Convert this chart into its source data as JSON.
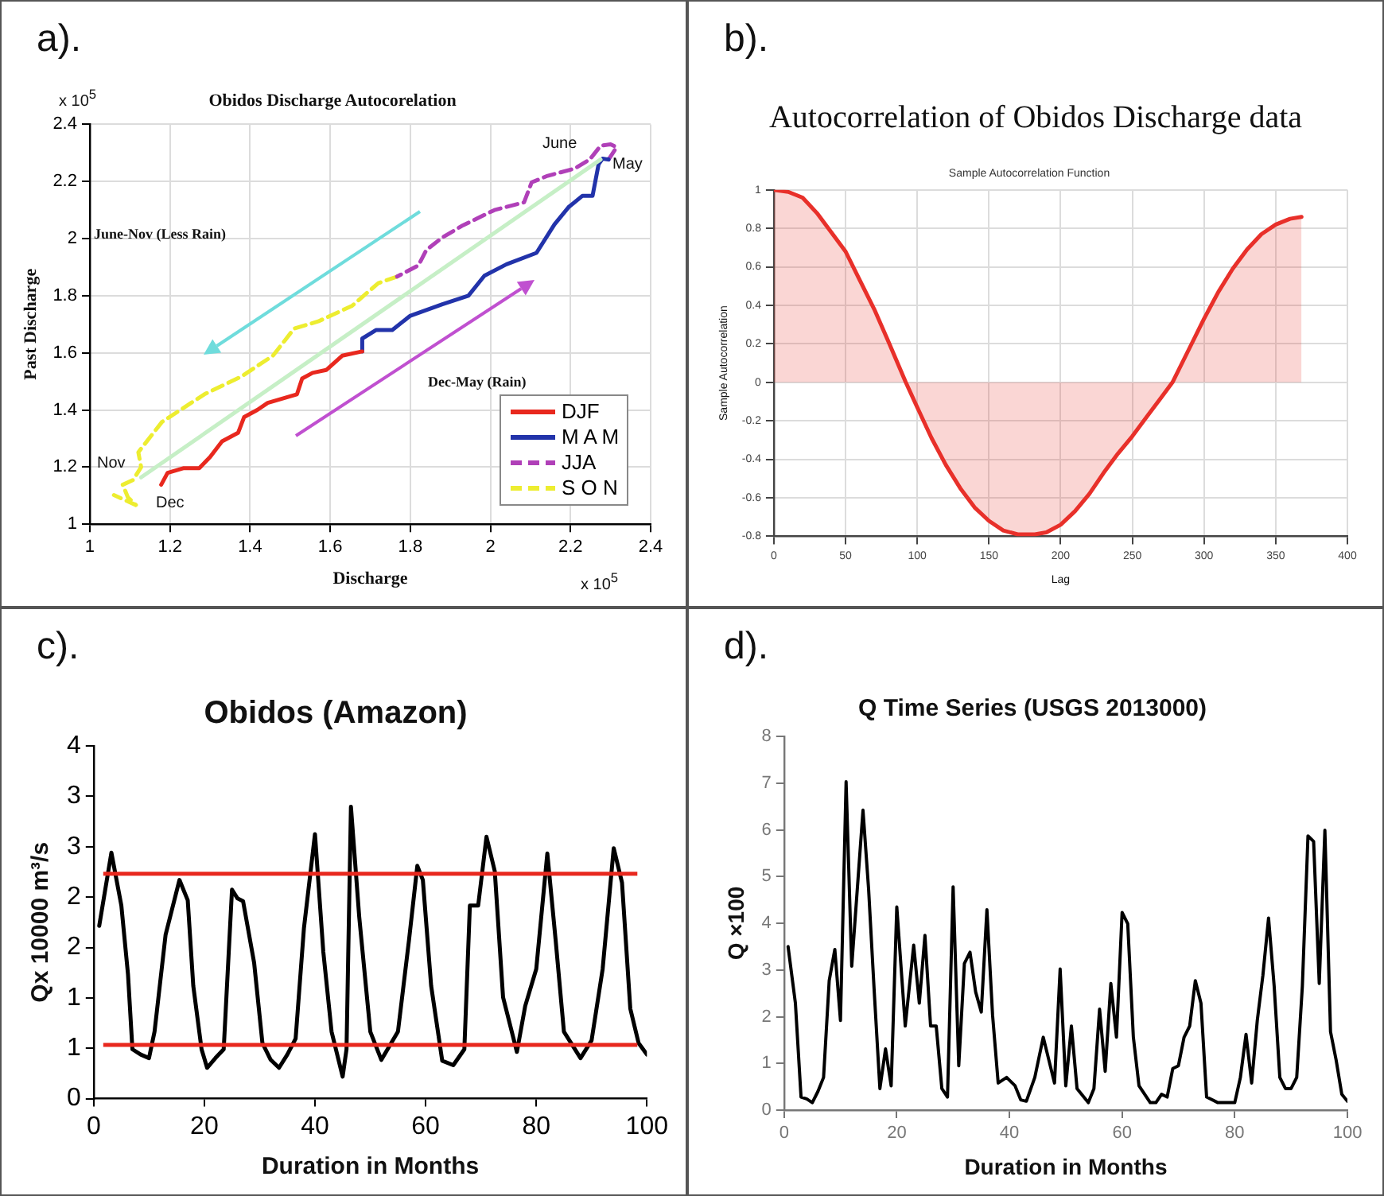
{
  "chart_data": [
    {
      "type": "line",
      "title": "Obidos Discharge Autocorelation",
      "xlabel": "Discharge",
      "ylabel": "Past Discharge",
      "xlim": [
        1,
        2.4
      ],
      "xticks": [
        1,
        1.2,
        1.4,
        1.6,
        1.8,
        2,
        2.2,
        2.4
      ],
      "ylim": [
        1,
        2.4
      ],
      "yticks": [
        1,
        1.2,
        1.4,
        1.6,
        1.8,
        2,
        2.2,
        2.4
      ],
      "grid": true,
      "legend": "bottom right",
      "marker": "none",
      "annotations": [
        "a).",
        "x 10$^{5}$",
        "x 10$^{5}$",
        "June-Nov (Less Rain)",
        "Dec-May (Rain)",
        "June",
        "May",
        "Nov",
        "Dec"
      ],
      "series": [
        {
          "x": [
            1.128,
            2.275
          ],
          "values": [
            1.164,
            2.277
          ],
          "color": "#c6efc6"
        },
        {
          "name": "DJF",
          "color": "#e8281e",
          "line_style": "solid",
          "x": [
            1.178,
            1.194,
            1.233,
            1.273,
            1.3,
            1.33,
            1.37,
            1.385,
            1.418,
            1.444,
            1.517,
            1.53,
            1.556,
            1.59,
            1.63,
            1.68
          ],
          "values": [
            1.138,
            1.18,
            1.196,
            1.196,
            1.235,
            1.29,
            1.32,
            1.375,
            1.4,
            1.425,
            1.455,
            1.51,
            1.53,
            1.54,
            1.59,
            1.605
          ]
        },
        {
          "name": "M A M",
          "color": "#2233aa",
          "line_style": "solid",
          "x": [
            1.68,
            1.68,
            1.715,
            1.755,
            1.8,
            1.88,
            1.945,
            1.985,
            2.04,
            2.115,
            2.16,
            2.195,
            2.23,
            2.255,
            2.27,
            2.28,
            2.295
          ],
          "values": [
            1.605,
            1.65,
            1.68,
            1.68,
            1.73,
            1.77,
            1.8,
            1.87,
            1.91,
            1.95,
            2.05,
            2.11,
            2.15,
            2.15,
            2.26,
            2.28,
            2.277
          ]
        },
        {
          "name": "JJA",
          "color": "#b040b8",
          "line_style": "dashed",
          "x": [
            2.295,
            2.315,
            2.3,
            2.275,
            2.248,
            2.21,
            2.143,
            2.103,
            2.084,
            2.01,
            1.932,
            1.879,
            1.84,
            1.82,
            1.767
          ],
          "values": [
            2.277,
            2.32,
            2.33,
            2.325,
            2.277,
            2.245,
            2.22,
            2.197,
            2.127,
            2.1,
            2.047,
            2.003,
            1.96,
            1.906,
            1.867
          ]
        },
        {
          "name": "S O N",
          "color": "#eded30",
          "line_style": "dashed",
          "x": [
            1.767,
            1.72,
            1.655,
            1.57,
            1.51,
            1.457,
            1.378,
            1.286,
            1.18,
            1.121,
            1.128,
            1.108,
            1.082,
            1.095,
            1.115,
            1.06
          ],
          "values": [
            1.867,
            1.844,
            1.765,
            1.71,
            1.685,
            1.59,
            1.517,
            1.455,
            1.358,
            1.252,
            1.2,
            1.155,
            1.138,
            1.094,
            1.067,
            1.102
          ]
        }
      ]
    },
    {
      "type": "area",
      "title": "Autocorrelation of Obidos Discharge data",
      "subtitle": "Sample Autocorrelation Function",
      "xlabel": "Lag",
      "ylabel": "Sample Autocorrelation",
      "xlim": [
        0,
        400
      ],
      "xticks": [
        0,
        50,
        100,
        150,
        200,
        250,
        300,
        350,
        400
      ],
      "ylim": [
        -0.8,
        1
      ],
      "yticks": [
        -0.8,
        -0.6,
        -0.4,
        -0.2,
        0,
        0.2,
        0.4,
        0.6,
        0.8,
        1
      ],
      "grid": true,
      "marker": "none",
      "annotations": [
        "b)."
      ],
      "series": [
        {
          "color": "#e8302a",
          "x": [
            0,
            10,
            20,
            30,
            40,
            50,
            60,
            70,
            80,
            92,
            100,
            110,
            120,
            130,
            140,
            150,
            160,
            170,
            182,
            190,
            200,
            210,
            220,
            230,
            240,
            250,
            260,
            270,
            278,
            290,
            300,
            310,
            320,
            330,
            340,
            350,
            360,
            368
          ],
          "values": [
            1,
            0.99,
            0.96,
            0.88,
            0.78,
            0.68,
            0.53,
            0.38,
            0.21,
            0,
            -0.13,
            -0.29,
            -0.43,
            -0.55,
            -0.65,
            -0.72,
            -0.77,
            -0.79,
            -0.79,
            -0.78,
            -0.74,
            -0.67,
            -0.58,
            -0.47,
            -0.37,
            -0.28,
            -0.18,
            -0.08,
            0,
            0.18,
            0.33,
            0.47,
            0.59,
            0.69,
            0.77,
            0.82,
            0.85,
            0.86
          ]
        }
      ]
    },
    {
      "type": "line",
      "title": "Obidos (Amazon)",
      "xlabel": "Duration in Months",
      "ylabel": "Qx 10000 m³/s",
      "xlim": [
        0,
        100
      ],
      "xticks": [
        0,
        20,
        40,
        60,
        80,
        100
      ],
      "ylim": [
        0,
        4
      ],
      "yticks": [
        0,
        {
          "value": 0.571,
          "label": "1"
        },
        {
          "value": 1.143,
          "label": "1"
        },
        {
          "value": 1.714,
          "label": "2"
        },
        {
          "value": 2.286,
          "label": "2"
        },
        {
          "value": 2.857,
          "label": "3"
        },
        {
          "value": 3.429,
          "label": "3"
        },
        4
      ],
      "grid": false,
      "marker": "none",
      "annotations": [
        "c)."
      ],
      "ref_lines": [
        {
          "axis": "y",
          "value": 2.55,
          "color": "#e8281e"
        },
        {
          "axis": "y",
          "value": 0.61,
          "color": "#e8281e"
        }
      ],
      "series": [
        {
          "color": "#000000",
          "x": [
            1,
            3.2,
            5,
            6.2,
            7,
            8.5,
            10,
            11,
            13,
            15.5,
            17,
            18,
            19.5,
            20.5,
            22,
            23.5,
            25,
            26,
            27,
            29,
            30.5,
            32,
            33.5,
            35,
            36.5,
            38,
            40,
            41.5,
            43,
            45,
            45.7,
            46.5,
            48,
            50,
            52,
            55,
            57,
            58.5,
            59.5,
            61,
            63,
            65,
            67,
            68,
            69.5,
            71,
            72.5,
            74,
            76.5,
            78,
            80,
            82,
            83.5,
            85,
            88,
            90,
            92,
            94,
            95.5,
            97,
            98.5,
            100
          ],
          "values": [
            1.96,
            2.79,
            2.19,
            1.41,
            0.56,
            0.5,
            0.46,
            0.76,
            1.86,
            2.48,
            2.25,
            1.28,
            0.56,
            0.35,
            0.46,
            0.56,
            2.37,
            2.27,
            2.24,
            1.54,
            0.63,
            0.44,
            0.35,
            0.5,
            0.68,
            1.93,
            3,
            1.67,
            0.76,
            0.25,
            0.56,
            3.31,
            2.06,
            0.76,
            0.44,
            0.76,
            1.8,
            2.64,
            2.48,
            1.28,
            0.43,
            0.38,
            0.56,
            2.19,
            2.19,
            2.97,
            2.58,
            1.15,
            0.53,
            1.05,
            1.47,
            2.78,
            1.8,
            0.76,
            0.46,
            0.66,
            1.47,
            2.84,
            2.45,
            1.02,
            0.63,
            0.5
          ]
        }
      ]
    },
    {
      "type": "line",
      "title": "Q Time Series (USGS 2013000)",
      "xlabel": "Duration in Months",
      "ylabel": "Q ×100",
      "xlim": [
        0,
        100
      ],
      "xticks": [
        0,
        20,
        40,
        60,
        80,
        100
      ],
      "ylim": [
        0,
        8
      ],
      "yticks": [
        0,
        1,
        2,
        3,
        4,
        5,
        6,
        7,
        8
      ],
      "grid": false,
      "marker": "none",
      "annotations": [
        "d)."
      ],
      "series": [
        {
          "color": "#000000",
          "x": [
            0.7,
            2,
            3,
            4,
            5,
            6,
            7,
            8,
            9,
            10,
            11,
            12,
            14,
            15,
            16,
            17,
            18,
            19,
            20,
            21.5,
            23,
            24,
            25,
            26,
            27,
            28,
            29,
            30,
            31,
            32,
            33,
            34,
            35,
            36,
            37,
            38,
            39.5,
            41,
            42,
            43,
            44.5,
            46,
            47,
            48,
            49,
            50,
            51,
            52,
            54,
            55,
            56,
            57,
            58,
            59,
            60,
            61,
            62,
            63,
            65,
            66,
            67,
            68,
            69,
            70,
            71,
            72,
            73,
            74,
            75,
            77,
            79,
            80,
            81,
            82,
            83,
            84,
            85,
            86,
            87,
            88,
            89,
            90,
            91,
            92,
            93,
            94,
            95,
            96,
            97,
            98,
            99,
            100
          ],
          "values": [
            3.5,
            2.29,
            0.28,
            0.24,
            0.16,
            0.4,
            0.7,
            2.77,
            3.44,
            1.92,
            7.03,
            3.08,
            6.42,
            4.72,
            2.53,
            0.46,
            1.31,
            0.52,
            4.35,
            1.8,
            3.53,
            2.29,
            3.74,
            1.8,
            1.8,
            0.46,
            0.28,
            4.78,
            0.95,
            3.14,
            3.38,
            2.53,
            2.1,
            4.29,
            2.04,
            0.58,
            0.7,
            0.52,
            0.22,
            0.19,
            0.7,
            1.56,
            1.07,
            0.58,
            3.02,
            0.52,
            1.8,
            0.46,
            0.16,
            0.46,
            2.16,
            0.83,
            2.71,
            1.56,
            4.23,
            3.99,
            1.56,
            0.52,
            0.16,
            0.16,
            0.34,
            0.28,
            0.89,
            0.95,
            1.56,
            1.8,
            2.77,
            2.29,
            0.28,
            0.16,
            0.16,
            0.16,
            0.7,
            1.62,
            0.58,
            1.92,
            2.89,
            4.11,
            2.65,
            0.7,
            0.46,
            0.46,
            0.7,
            2.65,
            5.87,
            5.75,
            2.71,
            5.99,
            1.68,
            1.07,
            0.34,
            0.19
          ]
        }
      ]
    }
  ]
}
